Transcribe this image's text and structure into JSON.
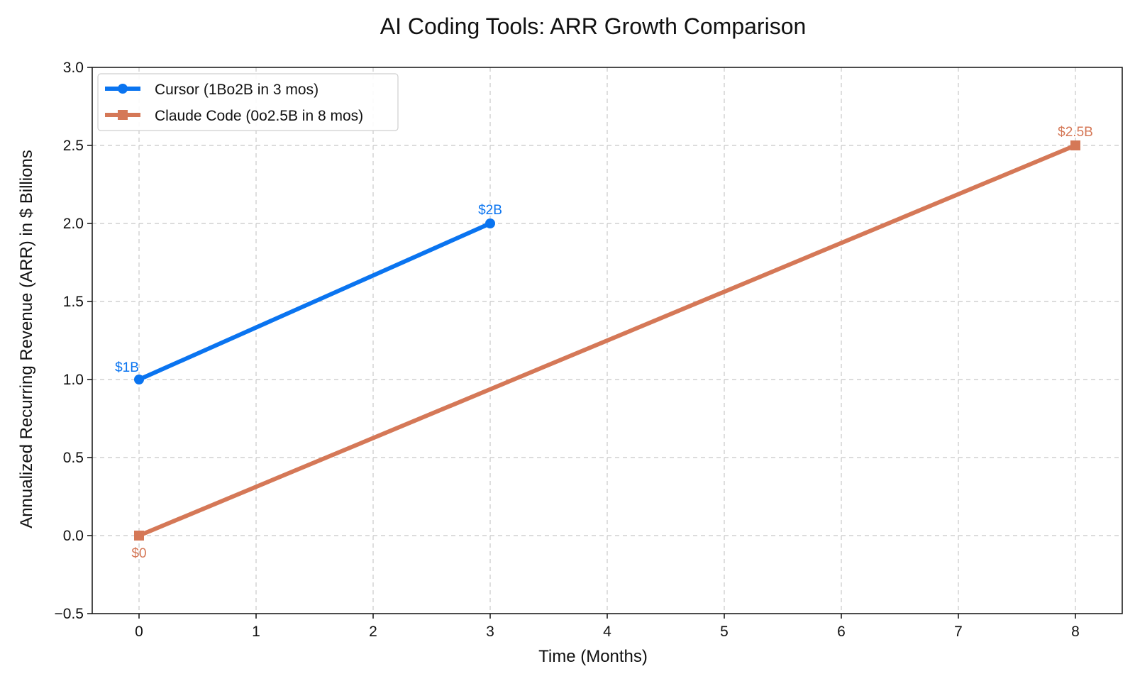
{
  "chart_data": {
    "type": "line",
    "title": "AI Coding Tools: ARR Growth Comparison",
    "xlabel": "Time (Months)",
    "ylabel": "Annualized Recurring Revenue (ARR) in $ Billions",
    "xlim": [
      -0.4,
      8.4
    ],
    "ylim": [
      -0.5,
      3.0
    ],
    "x_ticks": [
      0,
      1,
      2,
      3,
      4,
      5,
      6,
      7,
      8
    ],
    "y_ticks": [
      -0.5,
      0.0,
      0.5,
      1.0,
      1.5,
      2.0,
      2.5,
      3.0
    ],
    "y_tick_labels": [
      "−0.5",
      "0.0",
      "0.5",
      "1.0",
      "1.5",
      "2.0",
      "2.5",
      "3.0"
    ],
    "grid": true,
    "legend_position": "top-left",
    "series": [
      {
        "name": "Cursor (1Bo2B in 3 mos)",
        "color": "#0a74f0",
        "marker": "circle",
        "x": [
          0,
          3
        ],
        "y": [
          1.0,
          2.0
        ],
        "point_labels": [
          "$1B",
          "$2B"
        ],
        "label_placement": [
          "above-left",
          "above"
        ]
      },
      {
        "name": "Claude Code (0o2.5B in 8 mos)",
        "color": "#d57857",
        "marker": "square",
        "x": [
          0,
          8
        ],
        "y": [
          0.0,
          2.5
        ],
        "point_labels": [
          "$0",
          "$2.5B"
        ],
        "label_placement": [
          "below",
          "above"
        ]
      }
    ]
  }
}
